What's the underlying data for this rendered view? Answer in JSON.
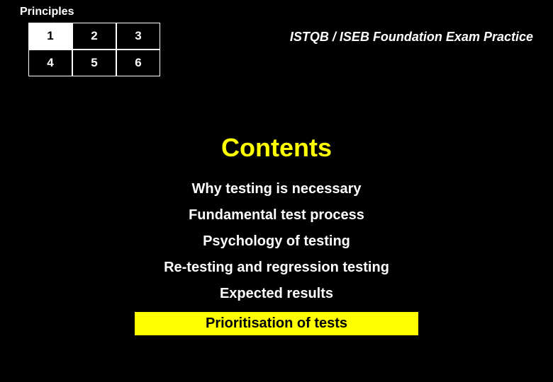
{
  "header": {
    "label": "Principles",
    "subtitle": "ISTQB / ISEB Foundation Exam Practice"
  },
  "nav": {
    "cells": [
      "1",
      "2",
      "3",
      "4",
      "5",
      "6"
    ],
    "active_index": 0,
    "cell_bg": "#000000",
    "cell_active_bg": "#ffffff",
    "cell_border": "#ffffff",
    "cell_text": "#ffffff",
    "cell_active_text": "#000000"
  },
  "title": {
    "text": "Contents",
    "color": "#ffff00",
    "fontsize": 36
  },
  "items": [
    {
      "text": "Why testing is necessary",
      "highlighted": false
    },
    {
      "text": "Fundamental test process",
      "highlighted": false
    },
    {
      "text": "Psychology of testing",
      "highlighted": false
    },
    {
      "text": "Re-testing and regression testing",
      "highlighted": false
    },
    {
      "text": "Expected results",
      "highlighted": false
    },
    {
      "text": "Prioritisation of tests",
      "highlighted": true
    }
  ],
  "styling": {
    "background_color": "#000000",
    "text_color": "#ffffff",
    "highlight_bg": "#ffff00",
    "highlight_text": "#000000",
    "item_fontsize": 20,
    "header_fontsize": 16,
    "subtitle_fontsize": 18
  }
}
